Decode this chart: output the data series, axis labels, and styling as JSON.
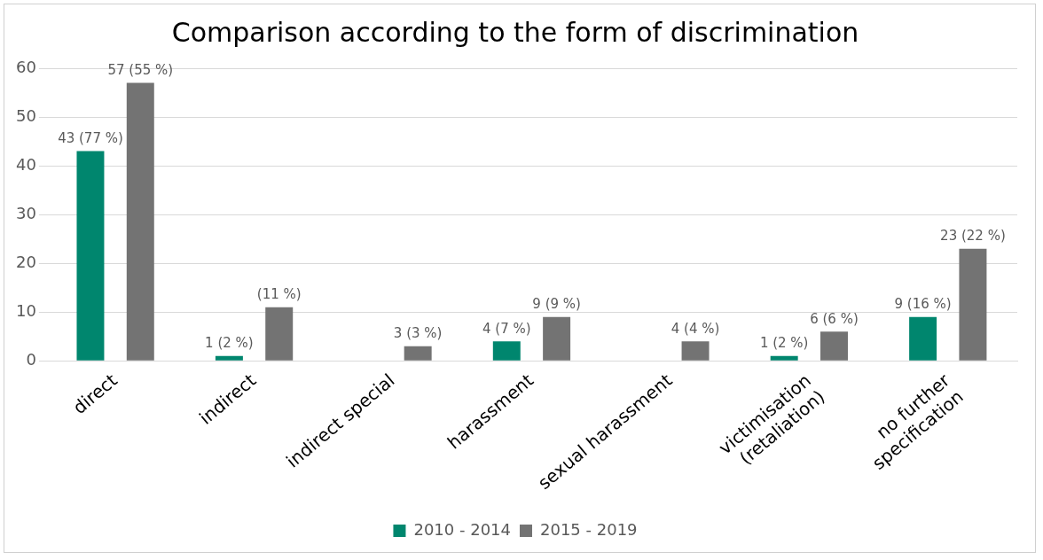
{
  "chart_data": {
    "type": "bar",
    "title": "Comparison according to the form of discrimination",
    "categories": [
      "direct",
      "indirect",
      "indirect special",
      "harassment",
      "sexual harassment",
      "victimisation\n(retaliation)",
      "no further\nspecification"
    ],
    "series": [
      {
        "name": "2010 - 2014",
        "color": "#00866e",
        "values": [
          43,
          1,
          null,
          4,
          null,
          1,
          9
        ],
        "value_labels": [
          "43 (77 %)",
          "1 (2 %)",
          null,
          "4 (7 %)",
          null,
          "1 (2 %)",
          "9 (16 %)"
        ]
      },
      {
        "name": "2015 - 2019",
        "color": "#737373",
        "values": [
          57,
          11,
          3,
          9,
          4,
          6,
          23
        ],
        "value_labels": [
          "57 (55 %)",
          "(11 %)",
          "3 (3 %)",
          "9 (9 %)",
          "4 (4 %)",
          "6 (6 %)",
          "23 (22 %)"
        ]
      }
    ],
    "ylim": [
      0,
      60
    ],
    "yticks": [
      0,
      10,
      20,
      30,
      40,
      50,
      60
    ],
    "grid": "y",
    "legend": "bottom"
  }
}
